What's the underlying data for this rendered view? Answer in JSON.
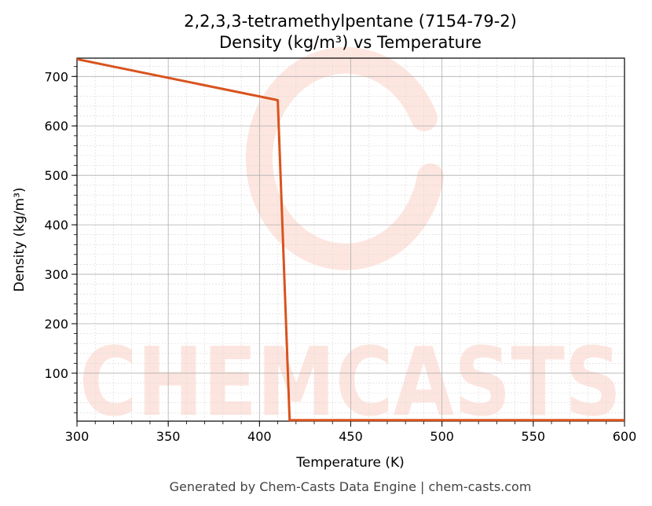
{
  "chart_data": {
    "type": "line",
    "title": "2,2,3,3-tetramethylpentane (7154-79-2)",
    "subtitle": "Density (kg/m³) vs Temperature",
    "xlabel": "Temperature (K)",
    "ylabel": "Density (kg/m³)",
    "xlim": [
      300,
      600
    ],
    "ylim": [
      3,
      737
    ],
    "xticks": [
      300,
      350,
      400,
      450,
      500,
      550,
      600
    ],
    "yticks": [
      100,
      200,
      300,
      400,
      500,
      600,
      700
    ],
    "grid": true,
    "line_color": "#d9531e",
    "series": [
      {
        "x": [
          300,
          410,
          416.5,
          600
        ],
        "y": [
          735,
          652,
          5,
          5
        ]
      }
    ]
  },
  "watermark": "CHEMCASTS",
  "footer": "Generated by Chem-Casts Data Engine | chem-casts.com"
}
